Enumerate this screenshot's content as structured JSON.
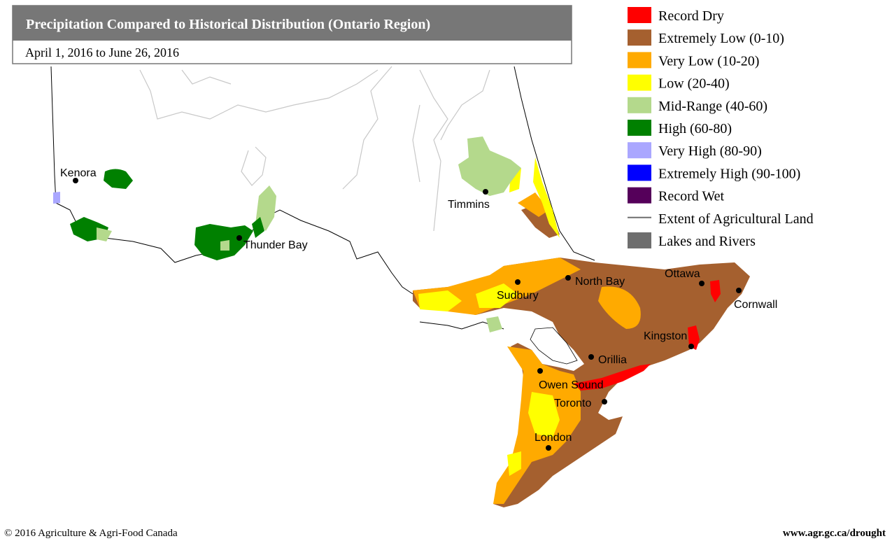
{
  "header": {
    "title": "Precipitation Compared to Historical Distribution (Ontario Region)",
    "subtitle": "April 1, 2016 to June 26, 2016"
  },
  "legend": {
    "items": [
      {
        "label": "Record Dry",
        "color": "#ff0000"
      },
      {
        "label": "Extremely Low (0-10)",
        "color": "#a5602f"
      },
      {
        "label": "Very Low (10-20)",
        "color": "#ffaa00"
      },
      {
        "label": "Low (20-40)",
        "color": "#ffff00"
      },
      {
        "label": "Mid-Range (40-60)",
        "color": "#b4d98c"
      },
      {
        "label": "High (60-80)",
        "color": "#008000"
      },
      {
        "label": "Very High (80-90)",
        "color": "#aaa7ff"
      },
      {
        "label": "Extremely High (90-100)",
        "color": "#0000ff"
      },
      {
        "label": "Record Wet",
        "color": "#55005a"
      },
      {
        "label": "Extent of Agricultural Land",
        "color": "#6e6e6e"
      },
      {
        "label": "Lakes and Rivers",
        "color": "#6e6e6e"
      }
    ]
  },
  "cities": [
    "Kenora",
    "Thunder Bay",
    "Timmins",
    "Sudbury",
    "North Bay",
    "Ottawa",
    "Cornwall",
    "Kingston",
    "Orillia",
    "Owen Sound",
    "Toronto",
    "London"
  ],
  "footer": {
    "copyright": "© 2016 Agriculture & Agri-Food Canada",
    "url": "www.agr.gc.ca/drought"
  }
}
